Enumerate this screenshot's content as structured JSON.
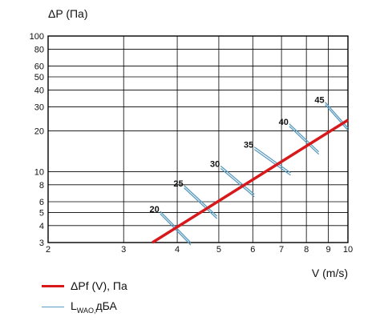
{
  "chart_data": {
    "type": "line",
    "x_scale": "log",
    "y_scale": "log",
    "xlabel": "V (m/s)",
    "ylabel": "ΔP (Па)",
    "xlim": [
      2,
      10
    ],
    "ylim": [
      3,
      100
    ],
    "grid": true,
    "x_ticks": [
      2,
      3,
      4,
      5,
      6,
      7,
      8,
      9,
      10
    ],
    "y_ticks": [
      3,
      4,
      5,
      6,
      8,
      10,
      20,
      30,
      40,
      50,
      60,
      80,
      100
    ],
    "series": [
      {
        "name": "ΔPf (V), Па",
        "color": "#d7191c",
        "x": [
          3.5,
          10
        ],
        "y": [
          3,
          24
        ]
      }
    ],
    "noise_lines": {
      "name_base": "L",
      "name_sub": "WAO,",
      "name_suffix": "дБА",
      "color": "#5a9bbf",
      "items": [
        {
          "label": "20",
          "x": [
            3.65,
            4.3
          ],
          "y": [
            5.1,
            3.0
          ]
        },
        {
          "label": "25",
          "x": [
            4.15,
            4.95
          ],
          "y": [
            7.9,
            4.7
          ]
        },
        {
          "label": "30",
          "x": [
            5.05,
            6.05
          ],
          "y": [
            11.0,
            6.8
          ]
        },
        {
          "label": "35",
          "x": [
            6.05,
            7.35
          ],
          "y": [
            15.2,
            9.8
          ]
        },
        {
          "label": "40",
          "x": [
            7.3,
            8.55
          ],
          "y": [
            22.5,
            14.0
          ]
        },
        {
          "label": "45",
          "x": [
            8.85,
            10.0
          ],
          "y": [
            32.5,
            21.0
          ]
        }
      ]
    }
  }
}
